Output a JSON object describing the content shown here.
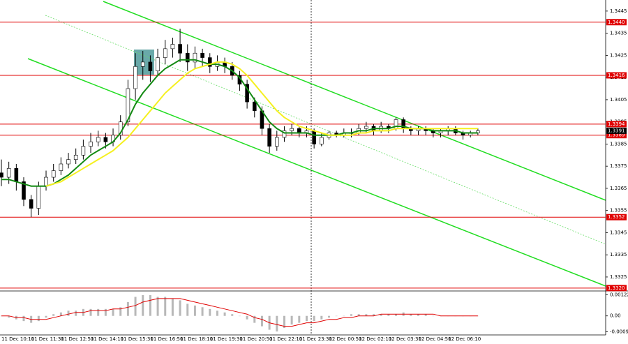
{
  "chart_data": [
    {
      "type": "candlestick",
      "categories": [
        "11 Dec 10:10",
        null,
        null,
        null,
        "11 Dec 11:30",
        null,
        null,
        null,
        "11 Dec 12:50",
        null,
        null,
        null,
        "11 Dec 14:10",
        null,
        null,
        null,
        "11 Dec 15:30",
        null,
        null,
        null,
        "11 Dec 16:50",
        null,
        null,
        null,
        "11 Dec 18:10",
        null,
        null,
        null,
        "11 Dec 19:30",
        null,
        null,
        null,
        "11 Dec 20:50",
        null,
        null,
        null,
        "11 Dec 22:10",
        null,
        null,
        null,
        "11 Dec 23:30",
        null,
        null,
        null,
        "12 Dec 00:50",
        null,
        null,
        null,
        "12 Dec 02:10",
        null,
        null,
        null,
        "12 Dec 03:30",
        null,
        null,
        null,
        "12 Dec 04:50",
        null,
        null,
        null,
        "12 Dec 06:10",
        null,
        null,
        null,
        null
      ],
      "open": [
        1.3372,
        1.337,
        1.3374,
        1.3368,
        1.336,
        1.3356,
        1.3366,
        1.337,
        1.3373,
        1.3376,
        1.3378,
        1.338,
        1.3384,
        1.3386,
        1.3388,
        1.3386,
        1.3389,
        1.3395,
        1.341,
        1.342,
        1.3422,
        1.3418,
        1.3424,
        1.3428,
        1.343,
        1.3426,
        1.3422,
        1.3426,
        1.3424,
        1.342,
        1.3422,
        1.342,
        1.3416,
        1.3412,
        1.3404,
        1.34,
        1.3392,
        1.3384,
        1.3388,
        1.3391,
        1.3392,
        1.339,
        1.3391,
        1.3385,
        1.3388,
        1.339,
        1.3389,
        1.339,
        1.339,
        1.3392,
        1.3393,
        1.3391,
        1.3393,
        1.3392,
        1.3396,
        1.3392,
        1.3391,
        1.3392,
        1.3391,
        1.339,
        1.3391,
        1.3392,
        1.339,
        1.3389,
        1.339
      ],
      "high": [
        1.3378,
        1.3377,
        1.3376,
        1.337,
        1.3362,
        1.3368,
        1.3373,
        1.3376,
        1.3379,
        1.3381,
        1.3383,
        1.3387,
        1.339,
        1.3391,
        1.339,
        1.3392,
        1.3398,
        1.3414,
        1.3426,
        1.3427,
        1.3425,
        1.3428,
        1.3432,
        1.3433,
        1.3437,
        1.343,
        1.3429,
        1.3428,
        1.3426,
        1.3425,
        1.3424,
        1.3422,
        1.3418,
        1.3414,
        1.3406,
        1.3402,
        1.3394,
        1.3391,
        1.3393,
        1.3394,
        1.3393,
        1.3393,
        1.3392,
        1.339,
        1.3391,
        1.3391,
        1.3392,
        1.3392,
        1.3394,
        1.3395,
        1.3394,
        1.3395,
        1.3394,
        1.3397,
        1.3397,
        1.3393,
        1.3393,
        1.3393,
        1.3392,
        1.3392,
        1.3393,
        1.3393,
        1.3391,
        1.3391,
        1.3392
      ],
      "low": [
        1.3366,
        1.3367,
        1.3364,
        1.3357,
        1.3352,
        1.3353,
        1.3364,
        1.3368,
        1.3371,
        1.3374,
        1.3376,
        1.3378,
        1.3381,
        1.3384,
        1.3383,
        1.3384,
        1.3387,
        1.3393,
        1.3405,
        1.3414,
        1.3413,
        1.3416,
        1.3421,
        1.3424,
        1.3422,
        1.3418,
        1.3419,
        1.342,
        1.3417,
        1.3418,
        1.3417,
        1.3414,
        1.3409,
        1.3401,
        1.3397,
        1.3389,
        1.3381,
        1.3382,
        1.3386,
        1.3389,
        1.3388,
        1.3388,
        1.3383,
        1.3384,
        1.3387,
        1.3388,
        1.3388,
        1.3388,
        1.3389,
        1.339,
        1.3389,
        1.339,
        1.339,
        1.3391,
        1.339,
        1.3389,
        1.3389,
        1.3389,
        1.3388,
        1.3388,
        1.3389,
        1.3389,
        1.3387,
        1.3388,
        1.3389
      ],
      "close": [
        1.337,
        1.3374,
        1.3368,
        1.336,
        1.3356,
        1.3366,
        1.337,
        1.3373,
        1.3376,
        1.3378,
        1.338,
        1.3384,
        1.3386,
        1.3388,
        1.3386,
        1.3389,
        1.3395,
        1.341,
        1.342,
        1.3422,
        1.3418,
        1.3424,
        1.3428,
        1.343,
        1.3426,
        1.3422,
        1.3426,
        1.3424,
        1.342,
        1.3422,
        1.342,
        1.3416,
        1.3412,
        1.3404,
        1.34,
        1.3392,
        1.3384,
        1.3388,
        1.3391,
        1.3392,
        1.339,
        1.3391,
        1.3385,
        1.3388,
        1.339,
        1.3389,
        1.339,
        1.339,
        1.3392,
        1.3393,
        1.3391,
        1.3393,
        1.3392,
        1.3396,
        1.3392,
        1.3391,
        1.3392,
        1.3391,
        1.339,
        1.3391,
        1.3392,
        1.339,
        1.3389,
        1.339,
        1.3391
      ],
      "up_color": "#ffffff",
      "down_color": "#000000",
      "series": [
        {
          "color": "#138a13",
          "values": [
            1.3369,
            1.3369,
            1.3368,
            1.3367,
            1.3366,
            1.3366,
            1.3366,
            1.3367,
            1.3369,
            1.3371,
            1.3374,
            1.3377,
            1.338,
            1.3382,
            1.3384,
            1.3386,
            1.339,
            1.3396,
            1.3403,
            1.3408,
            1.3412,
            1.3416,
            1.3419,
            1.3421,
            1.3423,
            1.3423,
            1.3423,
            1.3422,
            1.3421,
            1.3421,
            1.342,
            1.3418,
            1.3415,
            1.341,
            1.3405,
            1.34,
            1.3395,
            1.3392,
            1.339,
            1.339,
            1.339,
            1.339,
            1.3389,
            1.3389,
            1.3389,
            1.3389,
            1.339,
            1.339,
            1.3391,
            1.3391,
            1.3392,
            1.3392,
            1.3392,
            1.3393,
            1.3393,
            1.3392,
            1.3392,
            1.3392,
            1.3391,
            1.3391,
            1.3391,
            1.3391,
            1.339,
            1.339,
            1.339
          ]
        },
        {
          "color": "#f5f020",
          "values": [
            null,
            null,
            null,
            null,
            null,
            null,
            1.3366,
            1.3367,
            1.3368,
            1.337,
            1.3372,
            1.3374,
            1.3376,
            1.3378,
            1.338,
            1.3382,
            1.3385,
            1.3388,
            1.3392,
            1.3396,
            1.34,
            1.3404,
            1.3408,
            1.3411,
            1.3414,
            1.3417,
            1.3419,
            1.342,
            1.3421,
            1.3422,
            1.3422,
            1.3421,
            1.3419,
            1.3416,
            1.3412,
            1.3408,
            1.3404,
            1.34,
            1.3397,
            1.3395,
            1.3393,
            1.3392,
            1.3391,
            1.339,
            1.3389,
            1.3389,
            1.3389,
            1.3389,
            1.339,
            1.339,
            1.3391,
            1.3391,
            1.3391,
            1.3392,
            1.3392,
            1.3392,
            1.3392,
            1.3392,
            1.3392,
            1.3392,
            1.3392,
            1.3392,
            1.3392,
            1.3392,
            1.3392
          ]
        }
      ],
      "ylim": [
        1.3319,
        1.345
      ],
      "yticks": [
        1.3445,
        1.3435,
        1.3425,
        1.3415,
        1.3405,
        1.3395,
        1.3385,
        1.3375,
        1.3365,
        1.3355,
        1.3345,
        1.3335,
        1.3325
      ],
      "levels": [
        {
          "value": 1.344,
          "label": "1.3440"
        },
        {
          "value": 1.3416,
          "label": "1.3416"
        },
        {
          "value": 1.3394,
          "label": "1.3394"
        },
        {
          "value": 1.3389,
          "label": "1.3389"
        },
        {
          "value": 1.3352,
          "label": "1.3352"
        },
        {
          "value": 1.332,
          "label": "1.3320"
        }
      ],
      "level_color": "#e00000",
      "last_price": {
        "value": 1.3391,
        "label": "1.3391"
      },
      "grid": false
    },
    {
      "type": "bar",
      "values": [
        0.0,
        -0.0001,
        -0.0002,
        -0.0003,
        -0.0004,
        -0.0003,
        -0.0001,
        0.0001,
        0.0002,
        0.0003,
        0.0003,
        0.0004,
        0.0004,
        0.0004,
        0.0004,
        0.0004,
        0.0005,
        0.0008,
        0.0011,
        0.0012,
        0.0012,
        0.0011,
        0.0011,
        0.001,
        0.0009,
        0.0007,
        0.0006,
        0.0005,
        0.0004,
        0.0003,
        0.0002,
        0.0001,
        0.0,
        -0.0002,
        -0.0004,
        -0.0006,
        -0.0008,
        -0.0009,
        -0.0007,
        -0.0005,
        -0.0004,
        -0.0003,
        -0.0003,
        -0.0002,
        -0.0001,
        0.0,
        0.0,
        0.0001,
        0.0001,
        0.0001,
        0.0001,
        0.0001,
        0.0001,
        0.0001,
        0.0002,
        0.0001,
        0.0001,
        0.0001,
        0.0,
        0.0,
        0.0,
        0.0,
        0.0,
        0.0,
        0.0
      ],
      "color": "#b8b8b8",
      "series": [
        {
          "color": "#e00000",
          "values": [
            0.0,
            0.0,
            -0.0001,
            -0.0001,
            -0.0002,
            -0.0002,
            -0.0002,
            -0.0001,
            0.0,
            0.0001,
            0.0002,
            0.0002,
            0.0003,
            0.0003,
            0.0003,
            0.0004,
            0.0004,
            0.0005,
            0.0006,
            0.0008,
            0.0009,
            0.001,
            0.001,
            0.001,
            0.001,
            0.0009,
            0.0008,
            0.0007,
            0.0006,
            0.0005,
            0.0004,
            0.0003,
            0.0002,
            0.0001,
            -0.0001,
            -0.0002,
            -0.0004,
            -0.0005,
            -0.0006,
            -0.0006,
            -0.0005,
            -0.0004,
            -0.0004,
            -0.0003,
            -0.0002,
            -0.0002,
            -0.0001,
            -0.0001,
            0.0,
            0.0,
            0.0,
            0.0001,
            0.0001,
            0.0001,
            0.0001,
            0.0001,
            0.0001,
            0.0001,
            0.0001,
            0.0,
            0.0,
            0.0,
            0.0,
            0.0,
            0.0
          ]
        }
      ],
      "ylim": [
        -0.0011,
        0.0014
      ],
      "yticks": [
        0.00122,
        {
          "value": 0,
          "label": "0.00"
        },
        -0.00092
      ]
    }
  ]
}
